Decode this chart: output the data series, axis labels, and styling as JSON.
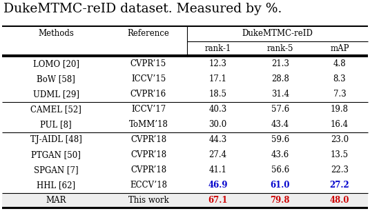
{
  "title": "DukeMTMC-reID dataset. Measured by %.",
  "rows": [
    [
      "LOMO [20]",
      "CVPR’15",
      "12.3",
      "21.3",
      "4.8"
    ],
    [
      "BoW [58]",
      "ICCV’15",
      "17.1",
      "28.8",
      "8.3"
    ],
    [
      "UDML [29]",
      "CVPR’16",
      "18.5",
      "31.4",
      "7.3"
    ],
    [
      "CAMEL [52]",
      "ICCV’17",
      "40.3",
      "57.6",
      "19.8"
    ],
    [
      "PUL [8]",
      "ToMM’18",
      "30.0",
      "43.4",
      "16.4"
    ],
    [
      "TJ-AIDL [48]",
      "CVPR’18",
      "44.3",
      "59.6",
      "23.0"
    ],
    [
      "PTGAN [50]",
      "CVPR’18",
      "27.4",
      "43.6",
      "13.5"
    ],
    [
      "SPGAN [7]",
      "CVPR’18",
      "41.1",
      "56.6",
      "22.3"
    ],
    [
      "HHL [62]",
      "ECCV’18",
      "46.9",
      "61.0",
      "27.2"
    ],
    [
      "MAR",
      "This work",
      "67.1",
      "79.8",
      "48.0"
    ]
  ],
  "row_colors": [
    "normal",
    "normal",
    "normal",
    "normal",
    "normal",
    "normal",
    "normal",
    "normal",
    "blue_bold",
    "red_bold"
  ],
  "group_separators_after": [
    2,
    4,
    8
  ],
  "background_color": "#ffffff",
  "text_color": "#000000",
  "blue_color": "#0000cc",
  "red_color": "#cc0000",
  "title_fontsize": 13.5,
  "header_fontsize": 8.5,
  "data_fontsize": 8.5,
  "lw_thick": 1.5,
  "lw_thin": 0.8,
  "fig_width": 5.36,
  "fig_height": 3.06,
  "dpi": 100
}
